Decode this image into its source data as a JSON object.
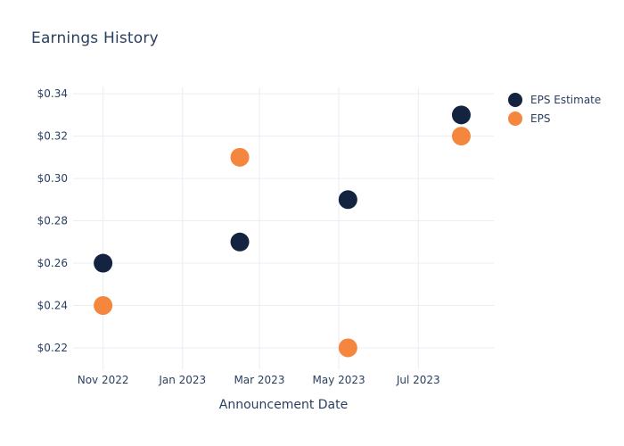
{
  "title": "Earnings History",
  "chart_data": {
    "type": "scatter",
    "title": "Earnings History",
    "xlabel": "Announcement Date",
    "ylabel": "",
    "x": [
      "2022-11-01",
      "2023-02-14",
      "2023-05-08",
      "2023-08-03"
    ],
    "series": [
      {
        "name": "EPS Estimate",
        "color": "#142440",
        "values": [
          0.26,
          0.27,
          0.29,
          0.33
        ]
      },
      {
        "name": "EPS",
        "color": "#f4863d",
        "values": [
          0.24,
          0.31,
          0.22,
          0.32
        ]
      }
    ],
    "y_ticks": [
      {
        "value": 0.34,
        "label": "$0.34"
      },
      {
        "value": 0.32,
        "label": "$0.32"
      },
      {
        "value": 0.3,
        "label": "$0.30"
      },
      {
        "value": 0.28,
        "label": "$0.28"
      },
      {
        "value": 0.26,
        "label": "$0.26"
      },
      {
        "value": 0.24,
        "label": "$0.24"
      },
      {
        "value": 0.22,
        "label": "$0.22"
      }
    ],
    "x_ticks": [
      {
        "date": "2022-11-01",
        "label": "Nov 2022"
      },
      {
        "date": "2023-01-01",
        "label": "Jan 2023"
      },
      {
        "date": "2023-03-01",
        "label": "Mar 2023"
      },
      {
        "date": "2023-05-01",
        "label": "May 2023"
      },
      {
        "date": "2023-07-01",
        "label": "Jul 2023"
      }
    ],
    "ylim": [
      0.2124,
      0.343
    ],
    "xlim": [
      "2022-10-09",
      "2023-08-28"
    ],
    "grid": true,
    "legend_position": "top-right-outside",
    "marker_size": 21,
    "colors": {
      "text": "#2a3f5f",
      "grid": "#e9edf4",
      "background": "#ffffff"
    }
  }
}
